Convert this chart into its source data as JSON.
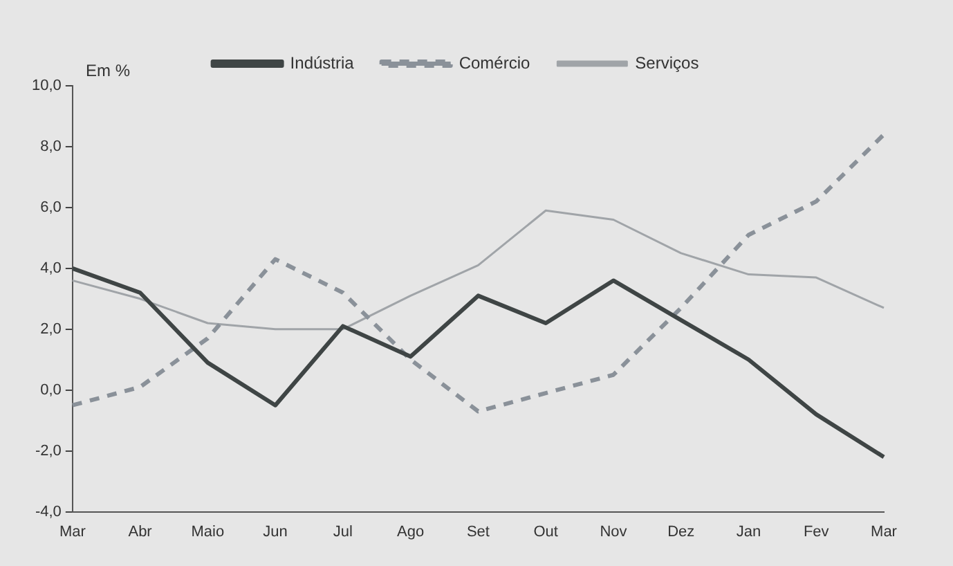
{
  "chart_data": {
    "type": "line",
    "ylabel": "Em %",
    "categories": [
      "Mar",
      "Abr",
      "Maio",
      "Jun",
      "Jul",
      "Ago",
      "Set",
      "Out",
      "Nov",
      "Dez",
      "Jan",
      "Fev",
      "Mar"
    ],
    "series": [
      {
        "name": "Indústria",
        "color": "#3f4545",
        "line_style": "solid",
        "values": [
          4.0,
          3.2,
          0.9,
          -0.5,
          2.1,
          1.1,
          3.1,
          2.2,
          3.6,
          2.3,
          1.0,
          -0.8,
          -2.2
        ]
      },
      {
        "name": "Comércio",
        "color": "#8a9199",
        "line_style": "dashed",
        "values": [
          -0.5,
          0.1,
          1.7,
          4.3,
          3.2,
          1.0,
          -0.7,
          -0.1,
          0.5,
          2.7,
          5.1,
          6.2,
          8.4
        ]
      },
      {
        "name": "Serviços",
        "color": "#a0a4a8",
        "line_style": "solid",
        "values": [
          3.6,
          3.0,
          2.2,
          2.0,
          2.0,
          3.1,
          4.1,
          5.9,
          5.6,
          4.5,
          3.8,
          3.7,
          2.7
        ]
      }
    ],
    "ylim": [
      -4,
      10
    ],
    "yticks": [
      {
        "value": -4,
        "label": "-4,0"
      },
      {
        "value": -2,
        "label": "-2,0"
      },
      {
        "value": 0,
        "label": "0,0"
      },
      {
        "value": 2,
        "label": "2,0"
      },
      {
        "value": 4,
        "label": "4,0"
      },
      {
        "value": 6,
        "label": "6,0"
      },
      {
        "value": 8,
        "label": "8,0"
      },
      {
        "value": 10,
        "label": "10,0"
      }
    ],
    "grid": false,
    "legend": "top",
    "marker": "none"
  }
}
